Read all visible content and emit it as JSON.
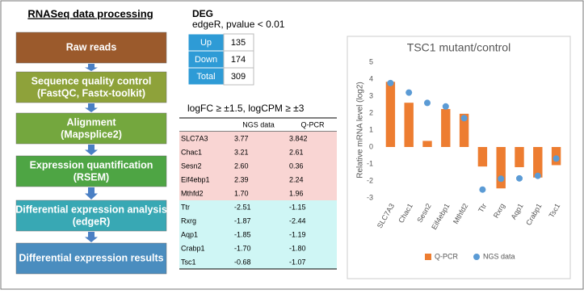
{
  "pipeline": {
    "title": "RNASeq data processing",
    "steps": [
      {
        "title": "Raw reads",
        "color": "#9b5a2c"
      },
      {
        "title": "Sequence quality control",
        "detail": "(FastQC, Fastx-toolkit)",
        "color": "#8ea23a"
      },
      {
        "title": "Alignment",
        "detail": "(Mapsplice2)",
        "color": "#74a73e"
      },
      {
        "title": "Expression quantification",
        "detail": "(RSEM)",
        "color": "#4ea544"
      },
      {
        "title": "Differential expression analysis",
        "detail": "(edgeR)",
        "color": "#38a8b4"
      },
      {
        "title": "Differential expression results",
        "color": "#4a8dbf"
      }
    ]
  },
  "deg": {
    "title": "DEG",
    "subtitle": "edgeR, pvalue < 0.01",
    "rows": [
      [
        "Up",
        "135"
      ],
      [
        "Down",
        "174"
      ],
      [
        "Total",
        "309"
      ]
    ]
  },
  "genes": {
    "title": "logFC ≥ ±1.5, logCPM ≥ ±3",
    "header": [
      "NGS data",
      "Q-PCR"
    ],
    "rows": [
      [
        "SLC7A3",
        "3.77",
        "3.842"
      ],
      [
        "Chac1",
        "3.21",
        "2.61"
      ],
      [
        "Sesn2",
        "2.60",
        "0.36"
      ],
      [
        "Eif4ebp1",
        "2.39",
        "2.24"
      ],
      [
        "Mthfd2",
        "1.70",
        "1.96"
      ],
      [
        "Ttr",
        "-2.51",
        "-1.15"
      ],
      [
        "Rxrg",
        "-1.87",
        "-2.44"
      ],
      [
        "Aqp1",
        "-1.85",
        "-1.19"
      ],
      [
        "Crabp1",
        "-1.70",
        "-1.80"
      ],
      [
        "Tsc1",
        "-0.68",
        "-1.07"
      ]
    ]
  },
  "chart_data": {
    "type": "combo",
    "title": "TSC1 mutant/control",
    "y_label": "Relative mRNA level (log2)",
    "categories": [
      "SLC7A3",
      "Chac1",
      "Sesn2",
      "Eif4ebp1",
      "Mthfd2",
      "Ttr",
      "Rxrg",
      "Aqp1",
      "Crabp1",
      "Tsc1"
    ],
    "series": [
      {
        "name": "Q-PCR",
        "type": "bar",
        "color": "#ed7d31",
        "values": [
          3.842,
          2.61,
          0.36,
          2.24,
          1.96,
          -1.15,
          -2.44,
          -1.19,
          -1.8,
          -1.07
        ]
      },
      {
        "name": "NGS data",
        "type": "scatter",
        "color": "#5b9bd5",
        "values": [
          3.77,
          3.21,
          2.6,
          2.39,
          1.7,
          -2.51,
          -1.87,
          -1.85,
          -1.7,
          -0.68
        ]
      }
    ],
    "ylim": [
      -3,
      5
    ],
    "yticks": [
      -3,
      -2,
      -1,
      0,
      1,
      2,
      3,
      4,
      5
    ],
    "legend": "bottom"
  }
}
